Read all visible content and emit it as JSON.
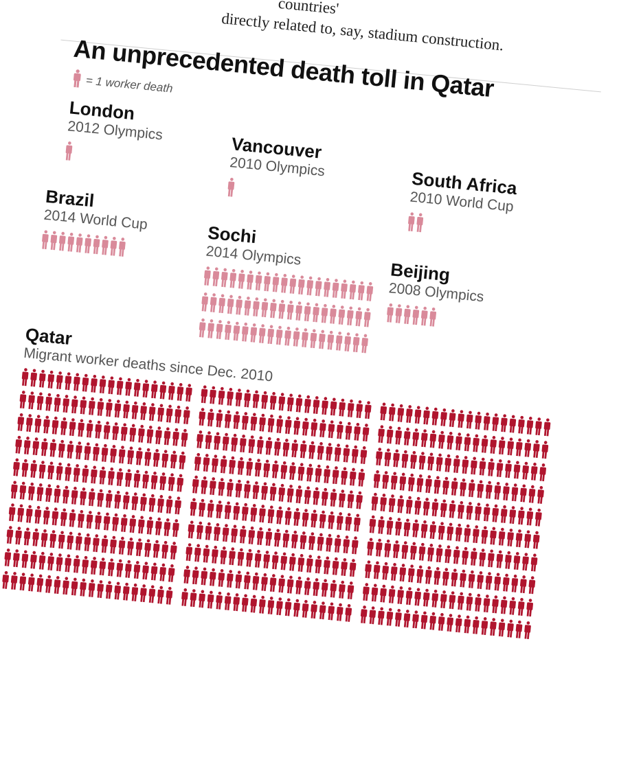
{
  "article": {
    "snippet_line_1": "countries'",
    "snippet_line_2": "directly related to, say, stadium construction."
  },
  "graphic": {
    "title": "An unprecedented death toll in Qatar",
    "key_text": "= 1 worker death",
    "key_icon": "person-icon",
    "colors": {
      "minor_events": "#d98a9a",
      "qatar": "#b0152e"
    }
  },
  "chart_data": {
    "type": "pictogram",
    "unit": "1 worker death",
    "title": "An unprecedented death toll in Qatar",
    "groups": [
      {
        "name": "London",
        "event": "2012 Olympics",
        "value": 1
      },
      {
        "name": "Vancouver",
        "event": "2010 Olympics",
        "value": 1
      },
      {
        "name": "South Africa",
        "event": "2010 World Cup",
        "value": 2
      },
      {
        "name": "Brazil",
        "event": "2014 World Cup",
        "value": 10
      },
      {
        "name": "Sochi",
        "event": "2014 Olympics",
        "value": 60
      },
      {
        "name": "Beijing",
        "event": "2008 Olympics",
        "value": 6
      },
      {
        "name": "Qatar",
        "event": "Migrant worker deaths since Dec. 2010",
        "value": 600
      }
    ]
  }
}
